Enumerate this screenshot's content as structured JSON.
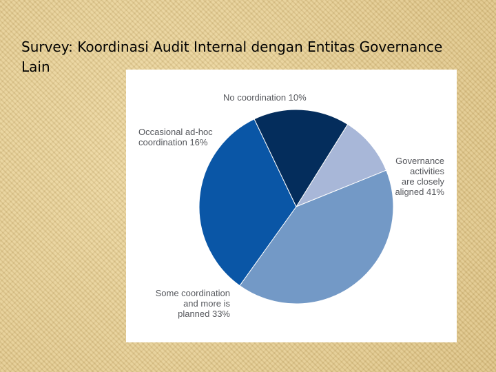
{
  "title": "Survey: Koordinasi Audit Internal dengan Entitas Governance Lain",
  "chart_data": {
    "type": "pie",
    "slices": [
      {
        "label": "No coordination 10%",
        "lines": [
          "No coordination 10%"
        ],
        "value": 10,
        "color": "#a8b7d8"
      },
      {
        "label": "Governance activities are closely aligned 41%",
        "lines": [
          "Governance",
          "activities",
          "are closely",
          "aligned 41%"
        ],
        "value": 41,
        "color": "#7399c6"
      },
      {
        "label": "Some coordination and more is planned 33%",
        "lines": [
          "Some coordination",
          "and more is",
          "planned 33%"
        ],
        "value": 33,
        "color": "#0a56a6"
      },
      {
        "label": "Occasional ad-hoc coordination 16%",
        "lines": [
          "Occasional ad-hoc",
          "coordination 16%"
        ],
        "value": 16,
        "color": "#042d5c"
      }
    ]
  }
}
